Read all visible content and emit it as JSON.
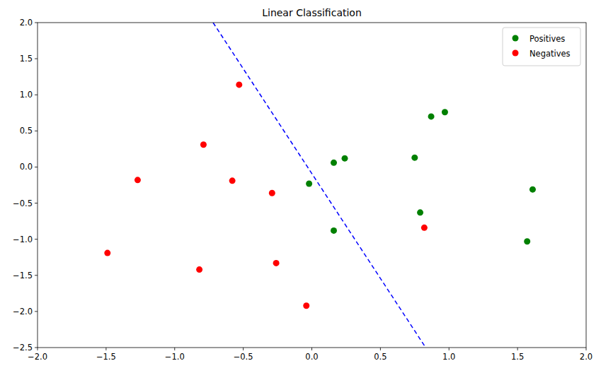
{
  "chart_data": {
    "type": "scatter",
    "title": "Linear Classification",
    "xlim": [
      -2.0,
      2.0
    ],
    "ylim": [
      -2.5,
      2.0
    ],
    "xticks": [
      {
        "value": -2.0,
        "label": "−2.0"
      },
      {
        "value": -1.5,
        "label": "−1.5"
      },
      {
        "value": -1.0,
        "label": "−1.0"
      },
      {
        "value": -0.5,
        "label": "−0.5"
      },
      {
        "value": 0.0,
        "label": "0.0"
      },
      {
        "value": 0.5,
        "label": "0.5"
      },
      {
        "value": 1.0,
        "label": "1.0"
      },
      {
        "value": 1.5,
        "label": "1.5"
      },
      {
        "value": 2.0,
        "label": "2.0"
      }
    ],
    "yticks": [
      {
        "value": -2.5,
        "label": "−2.5"
      },
      {
        "value": -2.0,
        "label": "−2.0"
      },
      {
        "value": -1.5,
        "label": "−1.5"
      },
      {
        "value": -1.0,
        "label": "−1.0"
      },
      {
        "value": -0.5,
        "label": "−0.5"
      },
      {
        "value": 0.0,
        "label": "0.0"
      },
      {
        "value": 0.5,
        "label": "0.5"
      },
      {
        "value": 1.0,
        "label": "1.0"
      },
      {
        "value": 1.5,
        "label": "1.5"
      },
      {
        "value": 2.0,
        "label": "2.0"
      }
    ],
    "legend": "upper right",
    "grid": false,
    "series": [
      {
        "name": "Positives",
        "color": "green",
        "marker": "circle",
        "x": [
          0.87,
          0.97,
          0.16,
          0.24,
          0.75,
          -0.02,
          1.61,
          0.79,
          0.16,
          1.57
        ],
        "values": [
          0.7,
          0.76,
          0.06,
          0.12,
          0.13,
          -0.23,
          -0.31,
          -0.63,
          -0.88,
          -1.03
        ]
      },
      {
        "name": "Negatives",
        "color": "red",
        "marker": "circle",
        "x": [
          -0.53,
          -0.79,
          -1.27,
          -0.58,
          -0.29,
          0.82,
          -1.49,
          -0.82,
          -0.26,
          -0.04
        ],
        "values": [
          1.14,
          0.31,
          -0.18,
          -0.19,
          -0.36,
          -0.84,
          -1.19,
          -1.42,
          -1.33,
          -1.92
        ]
      },
      {
        "type": "line",
        "color": "blue",
        "line_style": "dashed",
        "x": [
          -0.72,
          0.83
        ],
        "values": [
          2.0,
          -2.5
        ]
      }
    ]
  }
}
